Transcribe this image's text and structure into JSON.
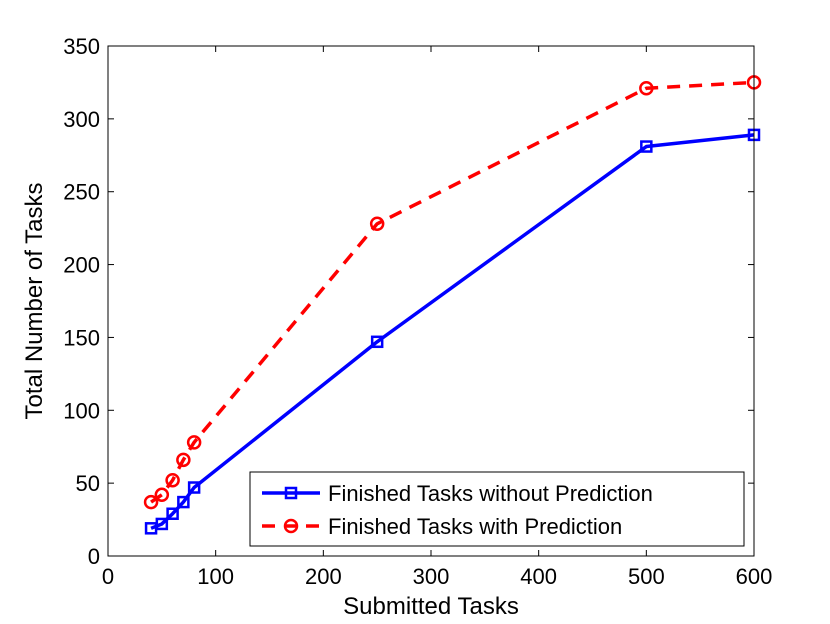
{
  "chart_data": {
    "type": "line",
    "title": "",
    "xlabel": "Submitted Tasks",
    "ylabel": "Total Number of Tasks",
    "xlim": [
      0,
      600
    ],
    "ylim": [
      0,
      350
    ],
    "xticks": [
      0,
      100,
      200,
      300,
      400,
      500,
      600
    ],
    "yticks": [
      0,
      50,
      100,
      150,
      200,
      250,
      300,
      350
    ],
    "xtick_labels": [
      "0",
      "100",
      "200",
      "300",
      "400",
      "500",
      "600"
    ],
    "ytick_labels": [
      "0",
      "50",
      "100",
      "150",
      "200",
      "250",
      "300",
      "350"
    ],
    "grid": false,
    "legend_position": "bottom-right",
    "x": [
      40,
      50,
      60,
      70,
      80,
      250,
      500,
      600
    ],
    "series": [
      {
        "name": "Finished Tasks without Prediction",
        "values": [
          19,
          22,
          29,
          37,
          47,
          147,
          281,
          289
        ],
        "color": "#0000ff",
        "line_style": "solid",
        "marker": "square"
      },
      {
        "name": "Finished Tasks with Prediction",
        "values": [
          37,
          42,
          52,
          66,
          78,
          228,
          321,
          325
        ],
        "color": "#ff0000",
        "line_style": "dashed",
        "marker": "circle"
      }
    ]
  }
}
